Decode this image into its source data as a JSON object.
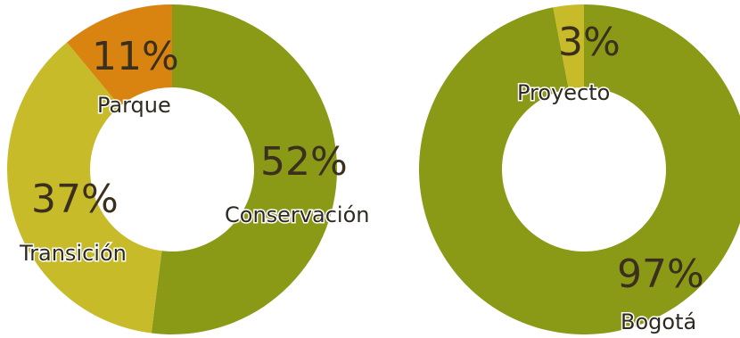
{
  "chart_data": [
    {
      "type": "pie",
      "variant": "donut",
      "slices": [
        {
          "label": "Conservación",
          "value": 52,
          "display": "52%",
          "color": "#8b9a16"
        },
        {
          "label": "Transición",
          "value": 37,
          "display": "37%",
          "color": "#c7bb2a"
        },
        {
          "label": "Parque",
          "value": 11,
          "display": "11%",
          "color": "#d98411"
        }
      ]
    },
    {
      "type": "pie",
      "variant": "donut",
      "slices": [
        {
          "label": "Bogotá",
          "value": 97,
          "display": "97%",
          "color": "#8b9a16"
        },
        {
          "label": "Proyecto",
          "value": 3,
          "display": "3%",
          "color": "#c7bb2a"
        }
      ]
    }
  ]
}
